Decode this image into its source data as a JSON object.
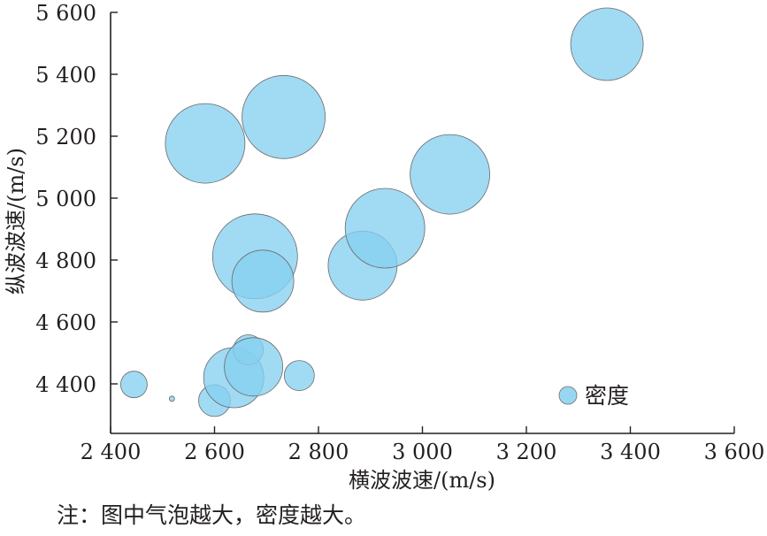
{
  "chart_data": {
    "type": "scatter",
    "xlabel": "横波波速/(m/s)",
    "ylabel": "纵波波速/(m/s)",
    "xlim": [
      2400,
      3600
    ],
    "ylim": [
      4240,
      5600
    ],
    "x_ticks": [
      2400,
      2600,
      2800,
      3000,
      3200,
      3400,
      3600
    ],
    "y_ticks": [
      4400,
      4600,
      4800,
      5000,
      5200,
      5400,
      5600
    ],
    "x_tick_labels": [
      "2 400",
      "2 600",
      "2 800",
      "3 000",
      "3 200",
      "3 400",
      "3 600"
    ],
    "y_tick_labels": [
      "4 400",
      "4 600",
      "4 800",
      "5 000",
      "5 200",
      "5 400",
      "5 600"
    ],
    "grid": false,
    "legend_position": "bottom-right",
    "series": [
      {
        "name": "密度",
        "color": "#86d0f0",
        "points": [
          {
            "x": 2445,
            "y": 4398,
            "size": 15
          },
          {
            "x": 2518,
            "y": 4352,
            "size": 3
          },
          {
            "x": 2600,
            "y": 4346,
            "size": 18
          },
          {
            "x": 2637,
            "y": 4420,
            "size": 34
          },
          {
            "x": 2665,
            "y": 4510,
            "size": 17
          },
          {
            "x": 2675,
            "y": 4455,
            "size": 33
          },
          {
            "x": 2763,
            "y": 4427,
            "size": 17
          },
          {
            "x": 2582,
            "y": 5177,
            "size": 45
          },
          {
            "x": 2733,
            "y": 5262,
            "size": 47
          },
          {
            "x": 2678,
            "y": 4812,
            "size": 48
          },
          {
            "x": 2693,
            "y": 4732,
            "size": 35
          },
          {
            "x": 2885,
            "y": 4782,
            "size": 39
          },
          {
            "x": 2928,
            "y": 4903,
            "size": 45
          },
          {
            "x": 3053,
            "y": 5077,
            "size": 45
          },
          {
            "x": 3355,
            "y": 5497,
            "size": 41
          }
        ]
      }
    ]
  },
  "legend": {
    "label": "密度"
  },
  "note": "注：图中气泡越大，密度越大。"
}
